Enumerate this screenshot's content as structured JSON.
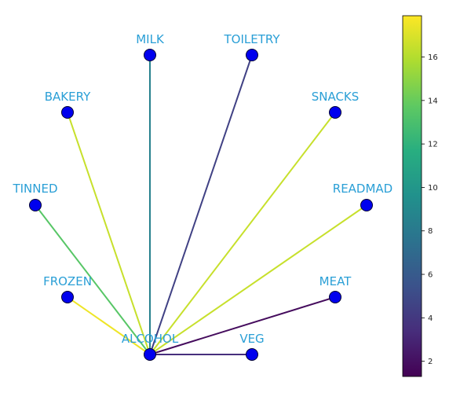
{
  "graph": {
    "center": "ALCOHOL",
    "nodes": [
      {
        "id": "MILK",
        "label": "MILK"
      },
      {
        "id": "TOILETRY",
        "label": "TOILETRY"
      },
      {
        "id": "BAKERY",
        "label": "BAKERY"
      },
      {
        "id": "SNACKS",
        "label": "SNACKS"
      },
      {
        "id": "TINNED",
        "label": "TINNED"
      },
      {
        "id": "READMAD",
        "label": "READMAD"
      },
      {
        "id": "FROZEN",
        "label": "FROZEN"
      },
      {
        "id": "MEAT",
        "label": "MEAT"
      },
      {
        "id": "ALCOHOL",
        "label": "ALCOHOL"
      },
      {
        "id": "VEG",
        "label": "VEG"
      }
    ],
    "edges": [
      {
        "source": "ALCOHOL",
        "target": "MILK",
        "weight": 8.5
      },
      {
        "source": "ALCOHOL",
        "target": "TOILETRY",
        "weight": 4.5
      },
      {
        "source": "ALCOHOL",
        "target": "BAKERY",
        "weight": 16.5
      },
      {
        "source": "ALCOHOL",
        "target": "SNACKS",
        "weight": 16.5
      },
      {
        "source": "ALCOHOL",
        "target": "TINNED",
        "weight": 13.5
      },
      {
        "source": "ALCOHOL",
        "target": "READMAD",
        "weight": 16.5
      },
      {
        "source": "ALCOHOL",
        "target": "FROZEN",
        "weight": 17.5
      },
      {
        "source": "ALCOHOL",
        "target": "MEAT",
        "weight": 1.8
      },
      {
        "source": "ALCOHOL",
        "target": "VEG",
        "weight": 3.5
      }
    ]
  },
  "colorbar": {
    "colormap": "viridis",
    "min": 1.3,
    "max": 17.9,
    "ticks": [
      "2",
      "4",
      "6",
      "8",
      "10",
      "12",
      "14",
      "16"
    ]
  },
  "colors": {
    "node_fill": "#0000ee",
    "node_stroke": "#000033",
    "label_color": "#2a9fd6"
  }
}
